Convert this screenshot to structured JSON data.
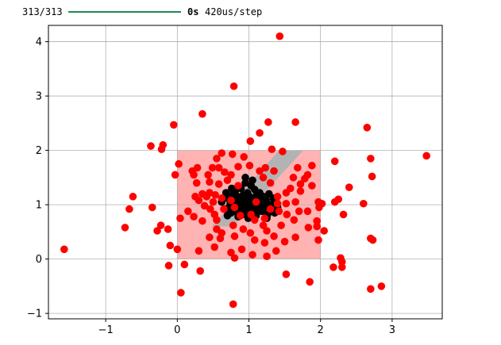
{
  "progress": {
    "step_text": "313/313",
    "fraction": 1.0,
    "eta_text": "0s",
    "rate_text": "420us/step",
    "bar_color": "#1e8c4e"
  },
  "chart_data": {
    "type": "scatter",
    "title": "",
    "xlabel": "",
    "ylabel": "",
    "xlim": [
      -1.8,
      3.7
    ],
    "ylim": [
      -1.1,
      4.3
    ],
    "xticks": [
      -1,
      0,
      1,
      2,
      3
    ],
    "yticks": [
      -1,
      0,
      1,
      2,
      3,
      4
    ],
    "grid": true,
    "regions": [
      {
        "kind": "rect",
        "x": [
          0,
          2
        ],
        "y": [
          0,
          2
        ],
        "color": "#ffb3b3"
      },
      {
        "kind": "polygon",
        "points": [
          [
            0.48,
            0.6
          ],
          [
            1.42,
            2.0
          ],
          [
            1.76,
            2.0
          ],
          [
            0.78,
            0.6
          ]
        ],
        "color": "#b3b3b3"
      }
    ],
    "series": [
      {
        "color": "#000000",
        "points": [
          [
            0.62,
            1.05
          ],
          [
            0.66,
            0.92
          ],
          [
            0.7,
            1.12
          ],
          [
            0.72,
            0.95
          ],
          [
            0.74,
            1.02
          ],
          [
            0.75,
            0.85
          ],
          [
            0.77,
            1.18
          ],
          [
            0.78,
            0.98
          ],
          [
            0.79,
            1.08
          ],
          [
            0.8,
            0.88
          ],
          [
            0.81,
            1.25
          ],
          [
            0.82,
            0.95
          ],
          [
            0.83,
            1.05
          ],
          [
            0.84,
            1.15
          ],
          [
            0.85,
            0.78
          ],
          [
            0.86,
            0.98
          ],
          [
            0.87,
            1.1
          ],
          [
            0.88,
            0.9
          ],
          [
            0.89,
            1.3
          ],
          [
            0.9,
            1.02
          ],
          [
            0.91,
            0.82
          ],
          [
            0.92,
            1.18
          ],
          [
            0.93,
            0.95
          ],
          [
            0.94,
            1.08
          ],
          [
            0.95,
            1.4
          ],
          [
            0.96,
            0.88
          ],
          [
            0.97,
            1.0
          ],
          [
            0.98,
            1.22
          ],
          [
            0.99,
            0.75
          ],
          [
            1.0,
            1.05
          ],
          [
            1.01,
            1.15
          ],
          [
            1.02,
            0.92
          ],
          [
            1.03,
            1.35
          ],
          [
            1.04,
            1.0
          ],
          [
            1.05,
            0.85
          ],
          [
            1.06,
            1.12
          ],
          [
            1.07,
            0.95
          ],
          [
            1.08,
            1.28
          ],
          [
            1.09,
            1.05
          ],
          [
            1.1,
            0.8
          ],
          [
            1.11,
            1.18
          ],
          [
            1.12,
            0.98
          ],
          [
            1.13,
            1.1
          ],
          [
            1.14,
            0.9
          ],
          [
            1.15,
            1.22
          ],
          [
            1.16,
            1.02
          ],
          [
            1.18,
            0.88
          ],
          [
            1.2,
            1.15
          ],
          [
            1.22,
            0.95
          ],
          [
            1.24,
            1.08
          ],
          [
            1.26,
            0.82
          ],
          [
            1.28,
            1.2
          ],
          [
            1.3,
            1.0
          ],
          [
            1.32,
            0.92
          ],
          [
            1.34,
            1.12
          ],
          [
            1.36,
            0.85
          ],
          [
            1.38,
            1.05
          ],
          [
            1.4,
            0.95
          ],
          [
            0.7,
            0.8
          ],
          [
            1.25,
            0.75
          ],
          [
            0.95,
            1.5
          ],
          [
            1.05,
            1.45
          ],
          [
            0.68,
            1.22
          ],
          [
            0.76,
            1.3
          ]
        ]
      },
      {
        "color": "#ff0000",
        "points": [
          [
            1.43,
            4.1
          ],
          [
            0.79,
            3.18
          ],
          [
            0.35,
            2.67
          ],
          [
            1.27,
            2.52
          ],
          [
            1.65,
            2.52
          ],
          [
            2.65,
            2.42
          ],
          [
            1.15,
            2.32
          ],
          [
            -0.05,
            2.47
          ],
          [
            1.02,
            2.17
          ],
          [
            -0.37,
            2.08
          ],
          [
            -0.2,
            2.1
          ],
          [
            -0.22,
            2.02
          ],
          [
            1.32,
            2.02
          ],
          [
            0.62,
            1.95
          ],
          [
            0.77,
            1.93
          ],
          [
            0.93,
            1.88
          ],
          [
            1.47,
            1.98
          ],
          [
            0.55,
            1.85
          ],
          [
            0.02,
            1.75
          ],
          [
            0.28,
            1.68
          ],
          [
            0.49,
            1.68
          ],
          [
            0.58,
            1.68
          ],
          [
            0.85,
            1.7
          ],
          [
            1.01,
            1.72
          ],
          [
            1.23,
            1.68
          ],
          [
            1.88,
            1.72
          ],
          [
            2.2,
            1.8
          ],
          [
            2.7,
            1.85
          ],
          [
            1.15,
            1.62
          ],
          [
            0.21,
            1.62
          ],
          [
            0.23,
            1.55
          ],
          [
            0.43,
            1.55
          ],
          [
            0.66,
            1.6
          ],
          [
            0.75,
            1.55
          ],
          [
            1.35,
            1.62
          ],
          [
            1.68,
            1.68
          ],
          [
            1.82,
            1.55
          ],
          [
            -0.03,
            1.55
          ],
          [
            2.72,
            1.52
          ],
          [
            3.48,
            1.9
          ],
          [
            1.2,
            1.5
          ],
          [
            0.7,
            1.45
          ],
          [
            1.62,
            1.5
          ],
          [
            1.78,
            1.48
          ],
          [
            0.27,
            1.4
          ],
          [
            0.58,
            1.38
          ],
          [
            0.45,
            1.42
          ],
          [
            1.72,
            1.38
          ],
          [
            1.88,
            1.35
          ],
          [
            1.3,
            1.4
          ],
          [
            0.85,
            1.35
          ],
          [
            2.4,
            1.32
          ],
          [
            1.58,
            1.3
          ],
          [
            1.72,
            1.25
          ],
          [
            1.52,
            1.22
          ],
          [
            0.35,
            1.2
          ],
          [
            0.45,
            1.22
          ],
          [
            0.41,
            1.15
          ],
          [
            0.53,
            1.18
          ],
          [
            0.25,
            1.15
          ],
          [
            0.3,
            1.08
          ],
          [
            0.62,
            1.12
          ],
          [
            1.4,
            1.15
          ],
          [
            2.25,
            1.1
          ],
          [
            2.2,
            1.05
          ],
          [
            -0.62,
            1.15
          ],
          [
            0.5,
            1.05
          ],
          [
            0.75,
            1.08
          ],
          [
            1.1,
            1.05
          ],
          [
            1.4,
            1.02
          ],
          [
            1.52,
            1.02
          ],
          [
            1.65,
            1.05
          ],
          [
            1.97,
            1.05
          ],
          [
            2.02,
            1.02
          ],
          [
            2.6,
            1.02
          ],
          [
            0.38,
            0.98
          ],
          [
            0.46,
            0.92
          ],
          [
            0.65,
            0.92
          ],
          [
            0.8,
            0.95
          ],
          [
            1.3,
            0.92
          ],
          [
            1.98,
            0.95
          ],
          [
            -0.35,
            0.95
          ],
          [
            -0.67,
            0.92
          ],
          [
            0.15,
            0.88
          ],
          [
            1.42,
            0.88
          ],
          [
            1.7,
            0.88
          ],
          [
            1.82,
            0.88
          ],
          [
            2.32,
            0.82
          ],
          [
            0.52,
            0.82
          ],
          [
            0.88,
            0.8
          ],
          [
            1.03,
            0.82
          ],
          [
            1.53,
            0.82
          ],
          [
            0.04,
            0.75
          ],
          [
            0.23,
            0.78
          ],
          [
            0.35,
            0.7
          ],
          [
            0.55,
            0.72
          ],
          [
            1.08,
            0.72
          ],
          [
            1.22,
            0.75
          ],
          [
            1.63,
            0.72
          ],
          [
            1.95,
            0.7
          ],
          [
            -0.23,
            0.62
          ],
          [
            -0.13,
            0.55
          ],
          [
            -0.28,
            0.52
          ],
          [
            -0.73,
            0.58
          ],
          [
            0.78,
            0.62
          ],
          [
            1.2,
            0.62
          ],
          [
            1.45,
            0.62
          ],
          [
            1.83,
            0.58
          ],
          [
            1.95,
            0.6
          ],
          [
            0.55,
            0.55
          ],
          [
            0.62,
            0.48
          ],
          [
            0.92,
            0.55
          ],
          [
            1.02,
            0.48
          ],
          [
            1.25,
            0.52
          ],
          [
            2.05,
            0.52
          ],
          [
            0.45,
            0.4
          ],
          [
            0.6,
            0.38
          ],
          [
            1.35,
            0.42
          ],
          [
            0.8,
            0.42
          ],
          [
            1.08,
            0.35
          ],
          [
            1.22,
            0.3
          ],
          [
            1.5,
            0.32
          ],
          [
            1.65,
            0.4
          ],
          [
            1.97,
            0.35
          ],
          [
            2.7,
            0.38
          ],
          [
            2.73,
            0.35
          ],
          [
            -0.1,
            0.25
          ],
          [
            0.0,
            0.18
          ],
          [
            0.3,
            0.15
          ],
          [
            0.52,
            0.22
          ],
          [
            0.75,
            0.12
          ],
          [
            0.9,
            0.18
          ],
          [
            1.05,
            0.08
          ],
          [
            1.38,
            0.15
          ],
          [
            1.25,
            0.05
          ],
          [
            0.8,
            0.02
          ],
          [
            2.28,
            0.02
          ],
          [
            2.3,
            -0.05
          ],
          [
            -1.58,
            0.18
          ],
          [
            -0.12,
            -0.12
          ],
          [
            0.1,
            -0.1
          ],
          [
            0.32,
            -0.22
          ],
          [
            2.18,
            -0.15
          ],
          [
            2.3,
            -0.15
          ],
          [
            1.52,
            -0.28
          ],
          [
            1.85,
            -0.42
          ],
          [
            2.7,
            -0.55
          ],
          [
            2.85,
            -0.5
          ],
          [
            0.05,
            -0.62
          ],
          [
            0.78,
            -0.83
          ]
        ]
      }
    ]
  }
}
